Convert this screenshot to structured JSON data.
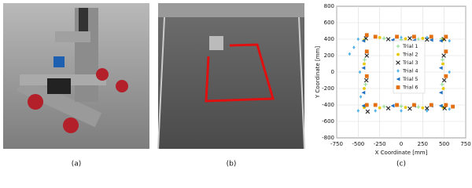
{
  "panels": {
    "a": {
      "label": "(a)"
    },
    "b": {
      "label": "(b)"
    }
  },
  "chart_data": {
    "type": "scatter",
    "label": "(c)",
    "x_label": "X Coordinate [mm]",
    "y_label": "Y Coordinate [mm]",
    "xlim": [
      -750,
      750
    ],
    "xticks": [
      -750,
      -500,
      -250,
      0,
      250,
      500,
      750
    ],
    "ylim": [
      -800,
      800
    ],
    "yticks": [
      -800,
      -600,
      -400,
      -200,
      0,
      200,
      400,
      600,
      800
    ],
    "grid": true,
    "legend": "right",
    "series": [
      {
        "name": "Trial 1",
        "color": "#8fdc8f",
        "marker": "+",
        "x": [
          -420,
          -425,
          -415,
          -420,
          -200,
          0,
          200,
          470,
          480,
          475,
          480,
          200,
          0,
          -200
        ],
        "y": [
          400,
          150,
          -150,
          -420,
          410,
          395,
          400,
          405,
          150,
          -150,
          -420,
          -425,
          -415,
          -420
        ]
      },
      {
        "name": "Trial 2",
        "color": "#e8c800",
        "marker": "o",
        "x": [
          -430,
          -430,
          -430,
          -430,
          -250,
          50,
          250,
          490,
          485,
          490,
          490,
          250,
          50,
          -250
        ],
        "y": [
          390,
          100,
          -200,
          -430,
          420,
          405,
          410,
          395,
          100,
          -200,
          -430,
          -435,
          -430,
          -435
        ]
      },
      {
        "name": "Trial 3",
        "color": "#222222",
        "marker": "x",
        "x": [
          -410,
          -400,
          -405,
          -390,
          -150,
          100,
          300,
          500,
          495,
          500,
          505,
          300,
          100,
          -150
        ],
        "y": [
          410,
          200,
          -100,
          -480,
          400,
          410,
          395,
          400,
          200,
          -100,
          -440,
          -440,
          -445,
          -440
        ]
      },
      {
        "name": "Trial 4",
        "color": "#56b4e9",
        "marker": "D",
        "x": [
          -600,
          -550,
          -500,
          -480,
          -470,
          -300,
          0,
          300,
          560,
          560,
          560,
          300,
          0,
          -300,
          -500
        ],
        "y": [
          220,
          300,
          400,
          0,
          -300,
          430,
          420,
          420,
          380,
          0,
          -450,
          -470,
          -470,
          -470,
          -470
        ]
      },
      {
        "name": "Trial 5",
        "color": "#1f6fc0",
        "marker": "<",
        "x": [
          -440,
          -440,
          -440,
          -440,
          -100,
          150,
          350,
          460,
          460,
          460,
          460,
          350,
          150,
          -100
        ],
        "y": [
          380,
          50,
          -250,
          -410,
          390,
          385,
          390,
          380,
          50,
          -250,
          -410,
          -410,
          -410,
          -410
        ]
      },
      {
        "name": "Trial 6",
        "color": "#e46f0f",
        "marker": "s",
        "x": [
          -400,
          -400,
          -400,
          -400,
          -300,
          -50,
          150,
          350,
          520,
          520,
          520,
          520,
          350,
          150,
          -50,
          -300,
          600
        ],
        "y": [
          450,
          250,
          -50,
          -400,
          430,
          430,
          430,
          430,
          430,
          250,
          -50,
          -400,
          -400,
          -400,
          -400,
          -400,
          -420
        ]
      }
    ]
  }
}
